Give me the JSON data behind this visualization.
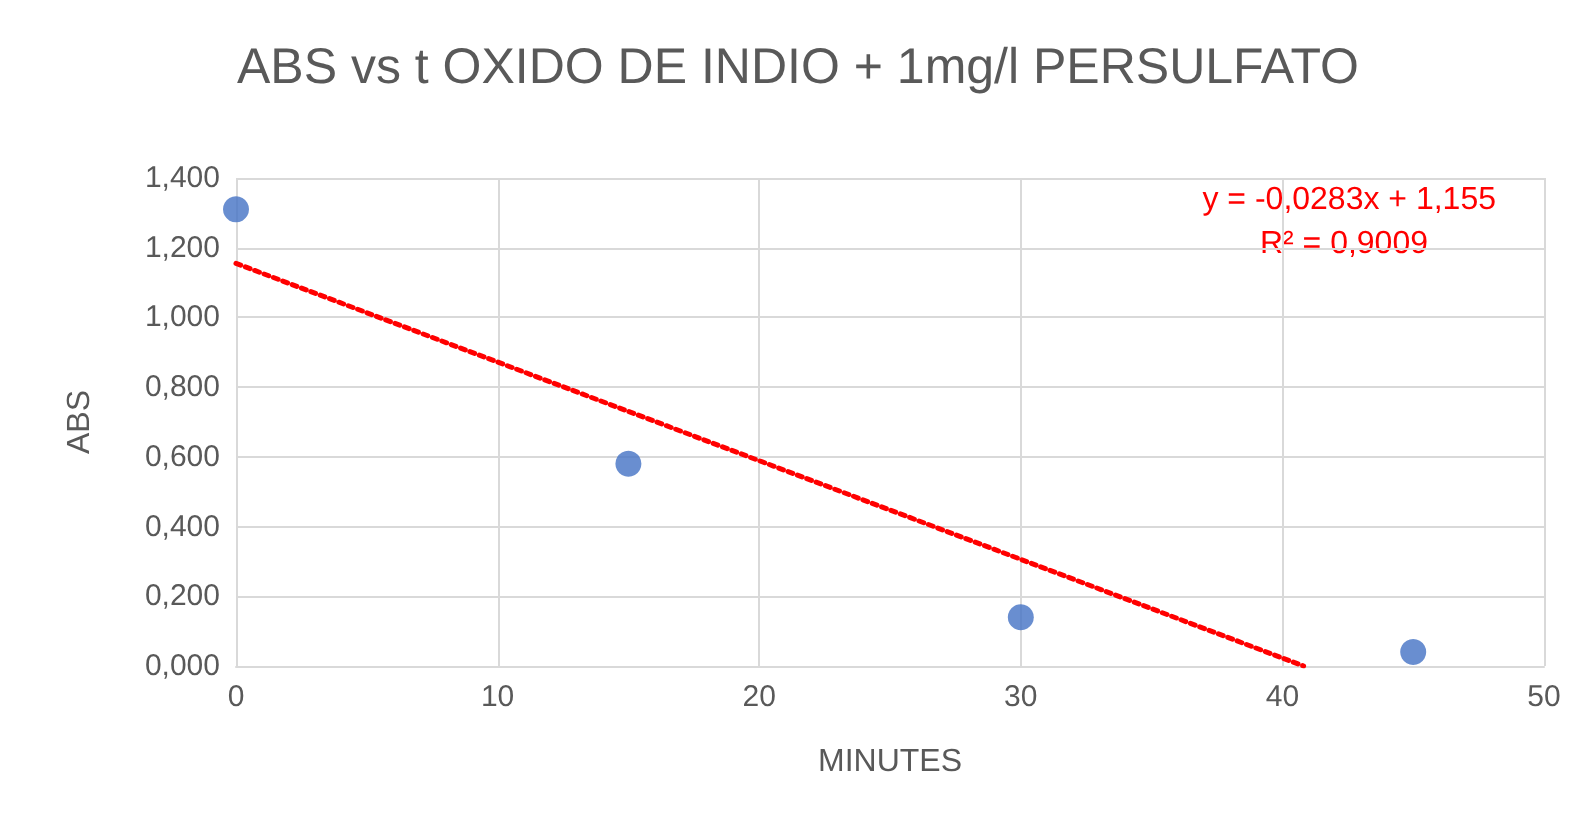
{
  "chart_data": {
    "type": "scatter",
    "title": "ABS vs t OXIDO DE INDIO + 1mg/l PERSULFATO",
    "xlabel": "MINUTES",
    "ylabel": "ABS",
    "series": [
      {
        "color": "#4472c4",
        "x": [
          0,
          15,
          30,
          45
        ],
        "values": [
          1.31,
          0.58,
          0.14,
          0.04
        ],
        "marker": "circle"
      },
      {
        "type": "line",
        "color": "#ff0000",
        "x": [
          0,
          40.81
        ],
        "values": [
          1.155,
          0
        ],
        "line_style": "dotted",
        "marker": "none"
      }
    ],
    "annotations": [
      "y = -0,0283x + 1,155",
      "R² = 0,9009"
    ],
    "xlim": [
      0,
      50
    ],
    "xticks": [
      0,
      10,
      20,
      30,
      40,
      50
    ],
    "ylim": [
      0,
      1.4
    ],
    "yticks": [
      {
        "value": 0,
        "label": "0,000"
      },
      {
        "value": 0.2,
        "label": "0,200"
      },
      {
        "value": 0.4,
        "label": "0,400"
      },
      {
        "value": 0.6,
        "label": "0,600"
      },
      {
        "value": 0.8,
        "label": "0,800"
      },
      {
        "value": 1,
        "label": "1,000"
      },
      {
        "value": 1.2,
        "label": "1,200"
      },
      {
        "value": 1.4,
        "label": "1,400"
      }
    ],
    "grid": true
  }
}
